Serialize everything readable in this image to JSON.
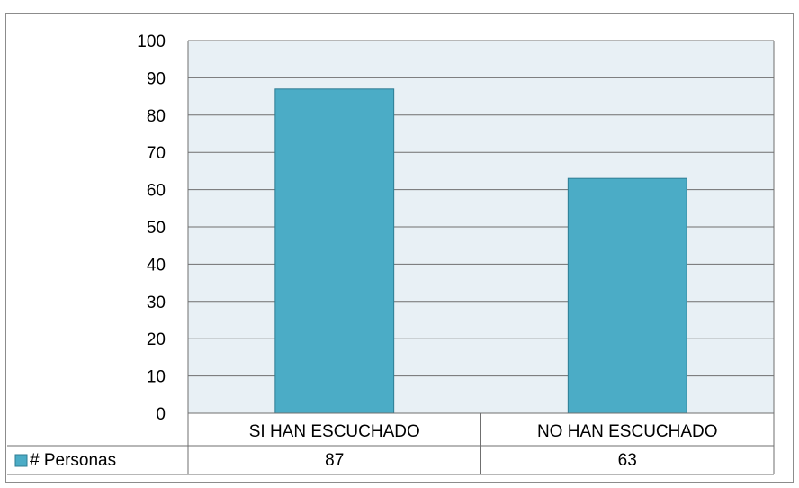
{
  "chart_data": {
    "type": "bar",
    "categories": [
      "SI HAN ESCUCHADO",
      "NO HAN ESCUCHADO"
    ],
    "series": [
      {
        "name": "# Personas",
        "values": [
          87,
          63
        ]
      }
    ],
    "ylim": [
      0,
      100
    ],
    "yticks": [
      "0",
      "10",
      "20",
      "30",
      "40",
      "50",
      "60",
      "70",
      "80",
      "90",
      "100"
    ],
    "grid": true,
    "data_table": true,
    "colors": {
      "bar": "#4BACC6",
      "bar_edge": "#2E7C93",
      "plot_bg": "#E8F0F5",
      "grid": "#6f6f6f",
      "frame": "#8c8c8c"
    }
  }
}
